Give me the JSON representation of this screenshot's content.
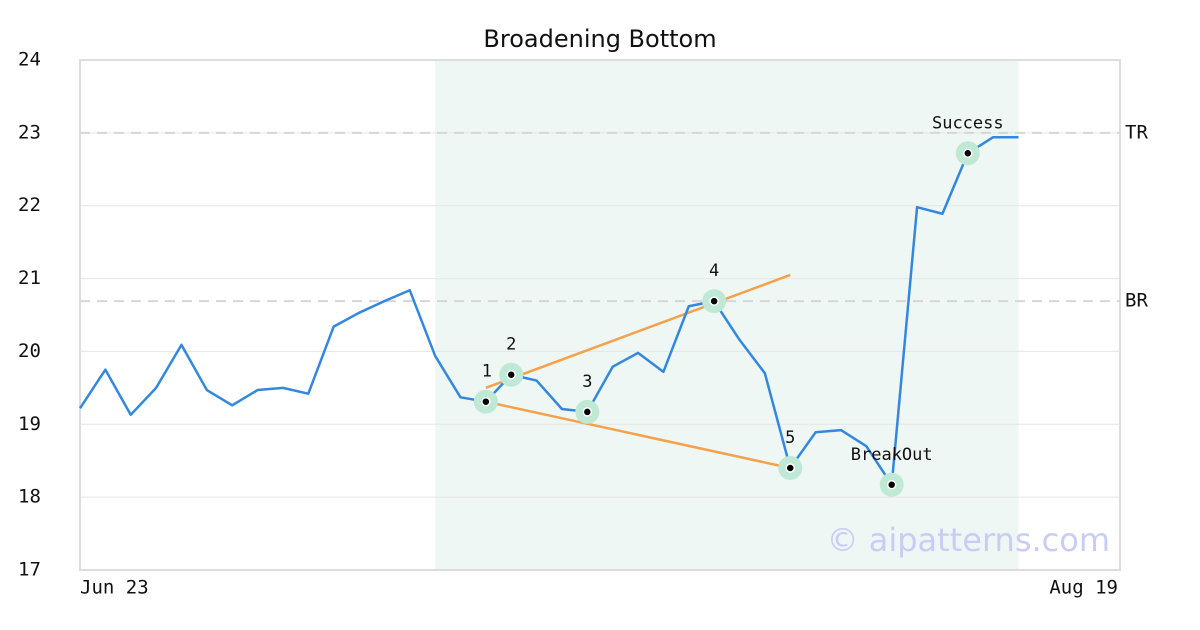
{
  "chart_data": {
    "type": "line",
    "title": "Broadening Bottom",
    "x": [
      0,
      1,
      2,
      3,
      4,
      5,
      6,
      7,
      8,
      9,
      10,
      11,
      12,
      13,
      14,
      15,
      16,
      17,
      18,
      19,
      20,
      21,
      22,
      23,
      24,
      25,
      26,
      27,
      28,
      29,
      30,
      31,
      32,
      33,
      34,
      35,
      36,
      37
    ],
    "series": [
      {
        "color": "#3388dd",
        "values": [
          19.22,
          19.75,
          19.13,
          19.5,
          20.09,
          19.47,
          19.26,
          19.47,
          19.5,
          19.42,
          20.34,
          20.53,
          20.69,
          20.84,
          19.94,
          19.37,
          19.31,
          19.68,
          19.6,
          19.21,
          19.17,
          19.79,
          19.98,
          19.72,
          20.62,
          20.69,
          20.16,
          19.7,
          18.4,
          18.89,
          18.92,
          18.7,
          18.17,
          21.98,
          21.89,
          22.72,
          22.94,
          22.94
        ]
      }
    ],
    "xlim": [
      0,
      41
    ],
    "xticks": [
      {
        "value": 0,
        "label": "Jun 23"
      },
      {
        "value": 41,
        "label": "Aug 19"
      }
    ],
    "ylim": [
      17,
      24
    ],
    "yticks": [
      17,
      18,
      19,
      20,
      21,
      22,
      23,
      24
    ],
    "grid": true,
    "highlight": {
      "from": 14,
      "to": 37,
      "color": "#eef7f3"
    },
    "trendlines": [
      {
        "x": [
          16,
          28
        ],
        "values": [
          19.5,
          21.05
        ],
        "color": "#f5a04a"
      },
      {
        "x": [
          16,
          28
        ],
        "values": [
          19.31,
          18.4
        ],
        "color": "#f5a04a"
      }
    ],
    "hlines": [
      {
        "value": 23,
        "label": "TR"
      },
      {
        "value": 20.69,
        "label": "BR"
      }
    ],
    "annotations": [
      {
        "index": 16,
        "label": "1"
      },
      {
        "index": 17,
        "label": "2"
      },
      {
        "index": 20,
        "label": "3"
      },
      {
        "index": 25,
        "label": "4"
      },
      {
        "index": 28,
        "label": "5"
      },
      {
        "index": 32,
        "label": "BreakOut"
      },
      {
        "index": 35,
        "label": "Success"
      }
    ],
    "watermark": "© aipatterns.com"
  }
}
